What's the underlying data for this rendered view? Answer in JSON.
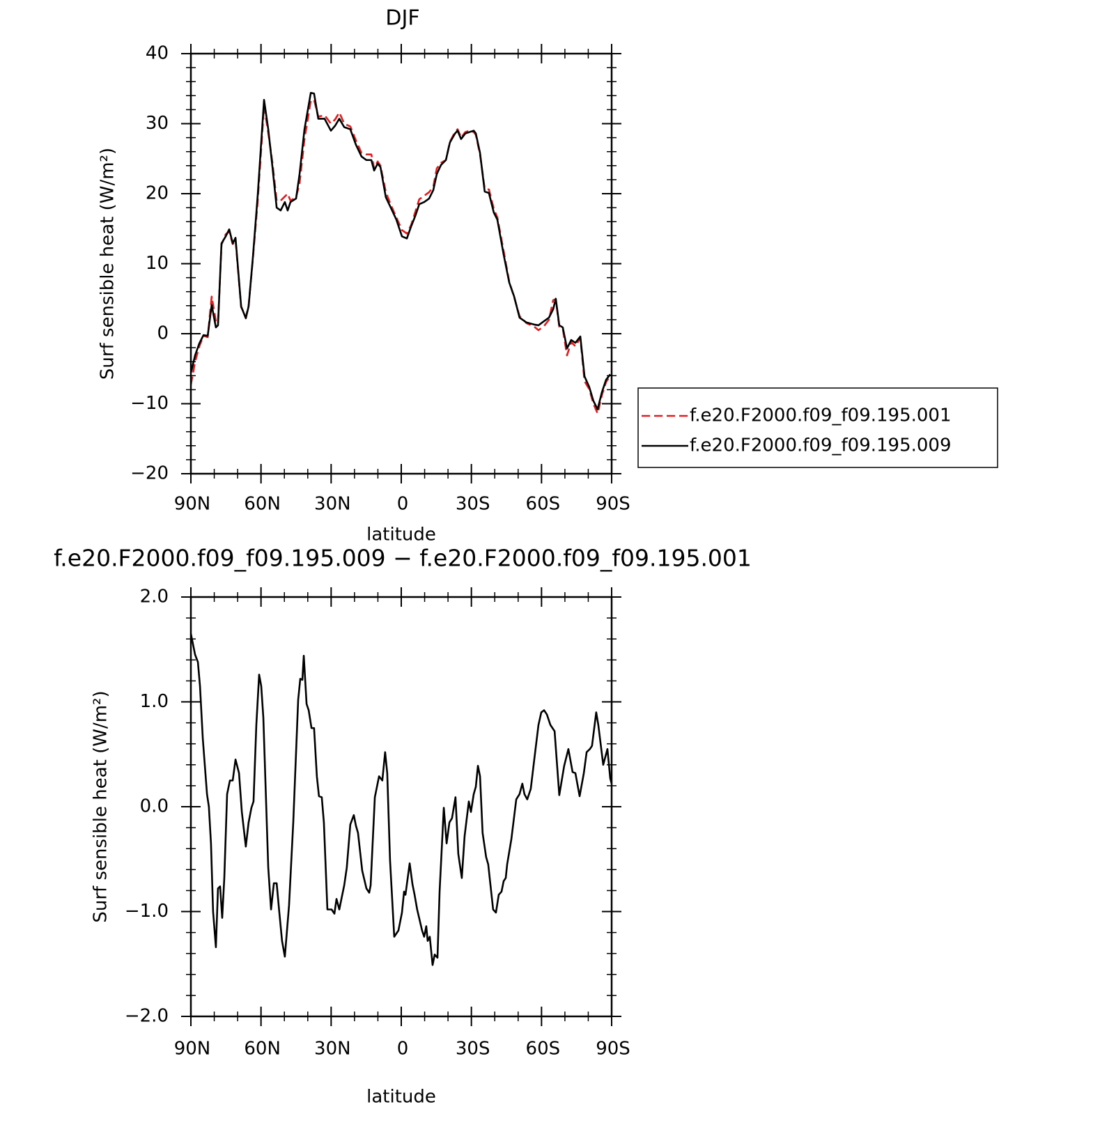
{
  "chart_data": [
    {
      "type": "line",
      "title": "DJF",
      "xlabel": "latitude",
      "ylabel": "Surf sensible heat (W/m²)",
      "xlim": [
        90,
        -90
      ],
      "xticks": [
        {
          "value": 90,
          "label": "90N"
        },
        {
          "value": 60,
          "label": "60N"
        },
        {
          "value": 30,
          "label": "30N"
        },
        0,
        {
          "value": -30,
          "label": "30S"
        },
        {
          "value": -60,
          "label": "60S"
        },
        {
          "value": -90,
          "label": "90S"
        }
      ],
      "minor_xticks": [
        80,
        70,
        50,
        40,
        20,
        10,
        -10,
        -20,
        -40,
        -50,
        -70,
        -80
      ],
      "ylim": [
        -20,
        40
      ],
      "yticks": [
        {
          "value": -20,
          "label": "−20"
        },
        {
          "value": -10,
          "label": "−10"
        },
        0,
        10,
        20,
        30,
        40
      ],
      "minor_yticks": [
        -18,
        -16,
        -14,
        -12,
        -8,
        -6,
        -4,
        -2,
        2,
        4,
        6,
        8,
        12,
        14,
        16,
        18,
        22,
        24,
        26,
        28,
        32,
        34,
        36,
        38
      ],
      "legend": "right",
      "x": [
        90,
        88.2,
        86.4,
        84.6,
        82.8,
        81.1,
        79.3,
        78.4,
        76.9,
        75.1,
        73.6,
        72.1,
        70.9,
        68.5,
        66.5,
        65.3,
        63.5,
        61.4,
        58.7,
        56.9,
        55.1,
        53.3,
        51.6,
        49.8,
        48.6,
        47.4,
        45.0,
        43.5,
        41.4,
        38.7,
        37.3,
        35.5,
        32.8,
        30.1,
        28.3,
        26.5,
        24.4,
        21.8,
        19.4,
        17.0,
        14.9,
        12.8,
        11.6,
        10.1,
        8.9,
        6.6,
        4.2,
        2.1,
        -0.3,
        -2.4,
        -4.2,
        -6.2,
        -7.7,
        -9.8,
        -11.9,
        -13.7,
        -15.2,
        -17.0,
        -19.1,
        -20.8,
        -23.0,
        -24.1,
        -25.6,
        -27.4,
        -29.2,
        -31.0,
        -31.9,
        -33.7,
        -35.7,
        -37.5,
        -39.6,
        -41.1,
        -43.8,
        -46.2,
        -48.3,
        -50.6,
        -53.6,
        -56.9,
        -58.7,
        -61.1,
        -63.2,
        -65.0,
        -66.1,
        -67.6,
        -69.1,
        -70.9,
        -72.7,
        -74.5,
        -76.6,
        -78.4,
        -80.4,
        -82.2,
        -84.0,
        -85.8,
        -87.6,
        -89.4
      ],
      "series": [
        {
          "name": "f.e20.F2000.f09_f09.195.001",
          "color": "#e41a1c",
          "dash": true,
          "values": [
            -7.3,
            -4.0,
            -1.8,
            -0.3,
            -0.5,
            5.3,
            1.8,
            1.4,
            12.7,
            14.2,
            14.6,
            12.8,
            13.4,
            3.8,
            2.4,
            4.0,
            10.6,
            19.0,
            32.5,
            28.7,
            24.4,
            19.0,
            19.0,
            19.6,
            20.0,
            19.0,
            19.5,
            21.5,
            27.8,
            33.3,
            33.4,
            31.0,
            31.2,
            30.0,
            30.6,
            31.6,
            30.0,
            29.6,
            27.6,
            25.8,
            25.6,
            25.6,
            23.6,
            24.6,
            24.0,
            20.2,
            18.2,
            16.6,
            14.8,
            14.3,
            15.5,
            17.6,
            19.2,
            19.7,
            20.2,
            21.0,
            23.6,
            24.4,
            24.8,
            27.4,
            28.8,
            29.2,
            28.0,
            28.8,
            29.0,
            28.8,
            28.4,
            25.6,
            20.7,
            20.6,
            17.8,
            16.6,
            11.8,
            7.4,
            5.2,
            2.5,
            1.5,
            1.0,
            0.5,
            1.1,
            2.0,
            4.8,
            4.9,
            1.0,
            0.7,
            -3.1,
            -1.2,
            -1.8,
            -0.6,
            -6.8,
            -7.9,
            -10.0,
            -11.4,
            -8.8,
            -6.9,
            -6.0
          ]
        },
        {
          "name": "f.e20.F2000.f09_f09.195.009",
          "color": "#000000",
          "dash": false,
          "values": [
            -5.6,
            -3.1,
            -1.4,
            -0.2,
            -0.3,
            4.1,
            0.9,
            1.2,
            12.9,
            13.9,
            14.9,
            12.9,
            13.7,
            3.9,
            2.2,
            3.9,
            10.8,
            19.8,
            33.4,
            29.2,
            23.8,
            18.0,
            17.6,
            18.8,
            17.6,
            18.8,
            19.3,
            22.8,
            29.2,
            34.4,
            34.3,
            30.7,
            30.7,
            29.0,
            29.7,
            30.7,
            29.5,
            29.2,
            27.0,
            25.3,
            24.8,
            24.8,
            23.3,
            24.3,
            23.8,
            19.5,
            17.8,
            16.3,
            13.9,
            13.6,
            15.3,
            17.0,
            18.5,
            18.8,
            19.3,
            20.5,
            22.8,
            24.1,
            24.8,
            27.3,
            28.6,
            29.0,
            27.8,
            28.6,
            28.8,
            29.0,
            28.6,
            25.8,
            20.3,
            20.1,
            17.3,
            16.3,
            11.3,
            7.3,
            5.3,
            2.3,
            1.6,
            1.3,
            1.2,
            1.8,
            2.3,
            3.5,
            5.0,
            1.2,
            0.9,
            -2.1,
            -0.9,
            -1.3,
            -0.4,
            -6.1,
            -7.6,
            -9.6,
            -10.8,
            -8.4,
            -6.6,
            -5.8
          ]
        }
      ]
    },
    {
      "type": "line",
      "title": "f.e20.F2000.f09_f09.195.009 − f.e20.F2000.f09_f09.195.001",
      "xlabel": "latitude",
      "ylabel": "Surf sensible heat (W/m²)",
      "xlim": [
        90,
        -90
      ],
      "xticks": [
        {
          "value": 90,
          "label": "90N"
        },
        {
          "value": 60,
          "label": "60N"
        },
        {
          "value": 30,
          "label": "30N"
        },
        0,
        {
          "value": -30,
          "label": "30S"
        },
        {
          "value": -60,
          "label": "60S"
        },
        {
          "value": -90,
          "label": "90S"
        }
      ],
      "minor_xticks": [
        80,
        70,
        50,
        40,
        20,
        10,
        -10,
        -20,
        -40,
        -50,
        -70,
        -80
      ],
      "ylim": [
        -2,
        2
      ],
      "yticks": [
        {
          "value": -2,
          "label": "−2.0"
        },
        {
          "value": -1,
          "label": "−1.0"
        },
        {
          "value": 0,
          "label": "0.0"
        },
        {
          "value": 1,
          "label": "1.0"
        },
        {
          "value": 2,
          "label": "2.0"
        }
      ],
      "minor_yticks": [
        -1.8,
        -1.6,
        -1.4,
        -1.2,
        -0.8,
        -0.6,
        -0.4,
        -0.2,
        0.2,
        0.4,
        0.6,
        0.8,
        1.2,
        1.4,
        1.6,
        1.8
      ],
      "series": [
        {
          "color": "#000000",
          "dash": false,
          "x": [
            90,
            88.2,
            87,
            86.1,
            84.9,
            83.1,
            82.3,
            81.4,
            80.5,
            79.3,
            78.4,
            77.5,
            76.6,
            75.7,
            74.5,
            73.3,
            72.1,
            70.9,
            69.4,
            68.2,
            66.5,
            65.3,
            64.1,
            63.2,
            62.0,
            60.8,
            59.9,
            59.0,
            56.9,
            55.7,
            54.5,
            53.3,
            52.2,
            51.0,
            49.8,
            48.0,
            46.2,
            44.1,
            43.2,
            42.3,
            41.7,
            40.5,
            39.6,
            38.4,
            37.3,
            36.1,
            35.2,
            34.0,
            33.1,
            31.6,
            29.8,
            28.6,
            27.7,
            26.5,
            25.6,
            24.4,
            23.3,
            21.8,
            20.3,
            19.4,
            18.5,
            16.7,
            14.9,
            13.7,
            13.1,
            11.3,
            9.5,
            8.1,
            6.9,
            6.0,
            4.8,
            3.0,
            1.2,
            -0.3,
            -1.2,
            -1.8,
            -3.6,
            -4.8,
            -5.7,
            -6.8,
            -8.9,
            -9.8,
            -10.7,
            -11.3,
            -12.2,
            -13.4,
            -14.3,
            -15.5,
            -16.4,
            -18.2,
            -19.4,
            -20.6,
            -21.7,
            -23.2,
            -24.4,
            -25.9,
            -27.1,
            -28.9,
            -29.8,
            -31.0,
            -31.9,
            -32.8,
            -33.7,
            -34.8,
            -36.3,
            -37.2,
            -39.3,
            -40.5,
            -41.7,
            -42.9,
            -43.8,
            -44.7,
            -45.3,
            -47.1,
            -49.2,
            -50.6,
            -51.8,
            -52.7,
            -53.9,
            -55.4,
            -56.9,
            -58.7,
            -59.9,
            -61.1,
            -62.3,
            -63.8,
            -65.6,
            -67.6,
            -69.7,
            -71.5,
            -73.3,
            -74.5,
            -76.3,
            -78.1,
            -79.3,
            -80.7,
            -81.6,
            -83.4,
            -84.3,
            -86.4,
            -88.2,
            -89.4,
            -90
          ],
          "values": [
            1.65,
            1.45,
            1.38,
            1.15,
            0.65,
            0.12,
            0,
            -0.35,
            -1.0,
            -1.34,
            -0.78,
            -0.76,
            -1.06,
            -0.68,
            0.12,
            0.25,
            0.25,
            0.45,
            0.32,
            -0.05,
            -0.38,
            -0.15,
            -0.01,
            0.05,
            0.78,
            1.26,
            1.15,
            0.85,
            -0.58,
            -0.98,
            -0.73,
            -0.73,
            -1.0,
            -1.28,
            -1.43,
            -0.94,
            -0.15,
            1.02,
            1.22,
            1.21,
            1.44,
            0.98,
            0.92,
            0.75,
            0.75,
            0.29,
            0.1,
            0.09,
            -0.15,
            -0.98,
            -0.98,
            -1.02,
            -0.88,
            -0.98,
            -0.88,
            -0.75,
            -0.58,
            -0.17,
            -0.08,
            -0.18,
            -0.25,
            -0.61,
            -0.78,
            -0.82,
            -0.75,
            0.09,
            0.29,
            0.25,
            0.52,
            0.32,
            -0.51,
            -1.24,
            -1.18,
            -1.01,
            -0.81,
            -0.84,
            -0.54,
            -0.74,
            -0.84,
            -0.98,
            -1.18,
            -1.24,
            -1.14,
            -1.28,
            -1.24,
            -1.51,
            -1.41,
            -1.44,
            -0.81,
            -0.01,
            -0.35,
            -0.15,
            -0.11,
            0.09,
            -0.45,
            -0.68,
            -0.28,
            0.05,
            -0.05,
            0.12,
            0.19,
            0.39,
            0.29,
            -0.25,
            -0.48,
            -0.55,
            -0.98,
            -1.01,
            -0.84,
            -0.81,
            -0.71,
            -0.68,
            -0.55,
            -0.31,
            0.07,
            0.12,
            0.22,
            0.12,
            0.07,
            0.17,
            0.45,
            0.78,
            0.9,
            0.92,
            0.88,
            0.78,
            0.72,
            0.11,
            0.39,
            0.55,
            0.33,
            0.32,
            0.1,
            0.32,
            0.52,
            0.55,
            0.58,
            0.9,
            0.78,
            0.4,
            0.55,
            0.27,
            0.22
          ]
        }
      ]
    }
  ]
}
